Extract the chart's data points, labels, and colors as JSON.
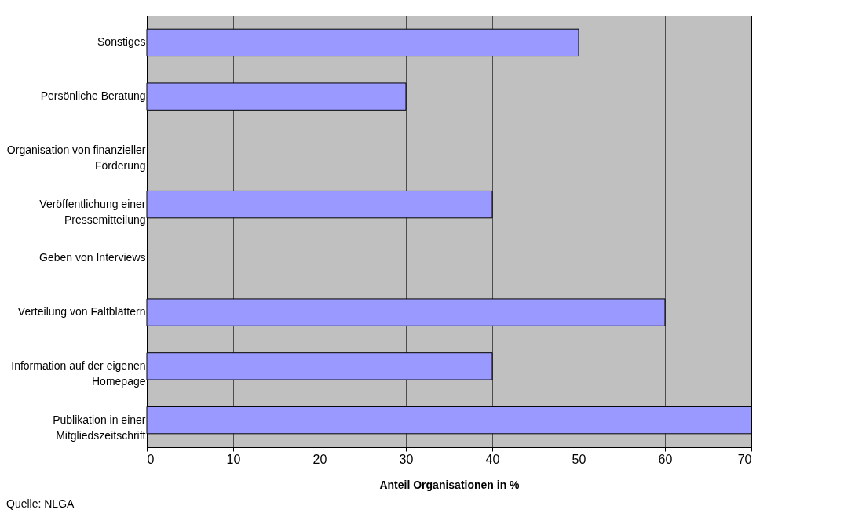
{
  "chart_data": {
    "type": "bar",
    "orientation": "horizontal",
    "xlabel": "Anteil Organisationen in %",
    "categories": [
      "Sonstiges",
      "Persönliche Beratung",
      "Organisation von finanzieller Förderung",
      "Veröffentlichung einer Pressemitteilung",
      "Geben von Interviews",
      "Verteilung von Faltblättern",
      "Information auf der eigenen Homepage",
      "Publikation in einer Mitgliedszeitschrift"
    ],
    "values": [
      50,
      30,
      0,
      40,
      0,
      60,
      40,
      70
    ],
    "color": "#9999ff",
    "xlim": [
      0,
      70
    ],
    "xticks": [
      0,
      10,
      20,
      30,
      40,
      50,
      60,
      70
    ],
    "grid": "x",
    "annotations": [
      "Quelle: NLGA"
    ]
  }
}
